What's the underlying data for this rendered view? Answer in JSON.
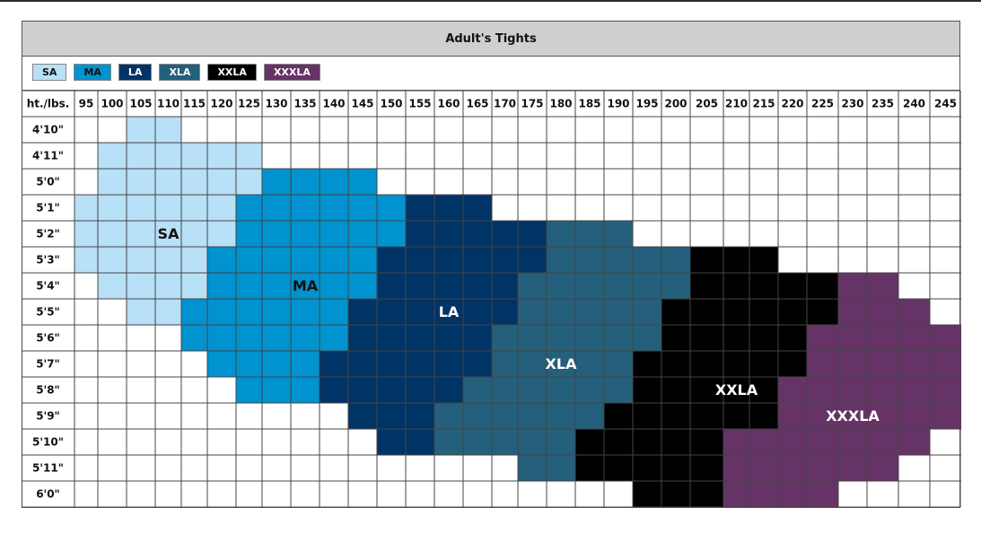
{
  "chart_data": {
    "type": "heatmap",
    "title": "Adult's Tights",
    "corner_label": "ht./lbs.",
    "weights": [
      "95",
      "100",
      "105",
      "110",
      "115",
      "120",
      "125",
      "130",
      "135",
      "140",
      "145",
      "150",
      "155",
      "160",
      "165",
      "170",
      "175",
      "180",
      "185",
      "190",
      "195",
      "200",
      "205",
      "210",
      "215",
      "220",
      "225",
      "230",
      "235",
      "240",
      "245"
    ],
    "heights": [
      "4'10\"",
      "4'11\"",
      "5'0\"",
      "5'1\"",
      "5'2\"",
      "5'3\"",
      "5'4\"",
      "5'5\"",
      "5'6\"",
      "5'7\"",
      "5'8\"",
      "5'9\"",
      "5'10\"",
      "5'11\"",
      "6'0\""
    ],
    "sizes": [
      {
        "code": "SA",
        "color": "#b8e0f7",
        "text_color": "#111111"
      },
      {
        "code": "MA",
        "color": "#0193d0",
        "text_color": "#111111"
      },
      {
        "code": "LA",
        "color": "#003366",
        "text_color": "#ffffff"
      },
      {
        "code": "XLA",
        "color": "#245f7b",
        "text_color": "#ffffff"
      },
      {
        "code": "XXLA",
        "color": "#000000",
        "text_color": "#ffffff"
      },
      {
        "code": "XXXLA",
        "color": "#663366",
        "text_color": "#ffffff"
      }
    ],
    "zones": [
      {
        "size": "SA",
        "rows": [
          {
            "height": "4'10\"",
            "from": "105",
            "to": "110"
          },
          {
            "height": "4'11\"",
            "from": "100",
            "to": "125"
          },
          {
            "height": "5'0\"",
            "from": "100",
            "to": "125"
          },
          {
            "height": "5'1\"",
            "from": "95",
            "to": "120"
          },
          {
            "height": "5'2\"",
            "from": "95",
            "to": "120"
          },
          {
            "height": "5'3\"",
            "from": "95",
            "to": "115"
          },
          {
            "height": "5'4\"",
            "from": "100",
            "to": "115"
          },
          {
            "height": "5'5\"",
            "from": "105",
            "to": "110"
          }
        ]
      },
      {
        "size": "MA",
        "rows": [
          {
            "height": "5'0\"",
            "from": "130",
            "to": "145"
          },
          {
            "height": "5'1\"",
            "from": "125",
            "to": "150"
          },
          {
            "height": "5'2\"",
            "from": "125",
            "to": "150"
          },
          {
            "height": "5'3\"",
            "from": "120",
            "to": "145"
          },
          {
            "height": "5'4\"",
            "from": "120",
            "to": "145"
          },
          {
            "height": "5'5\"",
            "from": "115",
            "to": "140"
          },
          {
            "height": "5'6\"",
            "from": "115",
            "to": "140"
          },
          {
            "height": "5'7\"",
            "from": "120",
            "to": "135"
          },
          {
            "height": "5'8\"",
            "from": "125",
            "to": "135"
          }
        ]
      },
      {
        "size": "LA",
        "rows": [
          {
            "height": "5'1\"",
            "from": "155",
            "to": "165"
          },
          {
            "height": "5'2\"",
            "from": "155",
            "to": "175"
          },
          {
            "height": "5'3\"",
            "from": "150",
            "to": "175"
          },
          {
            "height": "5'4\"",
            "from": "150",
            "to": "170"
          },
          {
            "height": "5'5\"",
            "from": "145",
            "to": "170"
          },
          {
            "height": "5'6\"",
            "from": "145",
            "to": "165"
          },
          {
            "height": "5'7\"",
            "from": "140",
            "to": "165"
          },
          {
            "height": "5'8\"",
            "from": "140",
            "to": "160"
          },
          {
            "height": "5'9\"",
            "from": "145",
            "to": "155"
          },
          {
            "height": "5'10\"",
            "from": "150",
            "to": "155"
          }
        ]
      },
      {
        "size": "XLA",
        "rows": [
          {
            "height": "5'2\"",
            "from": "180",
            "to": "190"
          },
          {
            "height": "5'3\"",
            "from": "180",
            "to": "200"
          },
          {
            "height": "5'4\"",
            "from": "175",
            "to": "200"
          },
          {
            "height": "5'5\"",
            "from": "175",
            "to": "195"
          },
          {
            "height": "5'6\"",
            "from": "170",
            "to": "195"
          },
          {
            "height": "5'7\"",
            "from": "170",
            "to": "190"
          },
          {
            "height": "5'8\"",
            "from": "165",
            "to": "190"
          },
          {
            "height": "5'9\"",
            "from": "160",
            "to": "185"
          },
          {
            "height": "5'10\"",
            "from": "160",
            "to": "180"
          },
          {
            "height": "5'11\"",
            "from": "175",
            "to": "180"
          }
        ]
      },
      {
        "size": "XXLA",
        "rows": [
          {
            "height": "5'3\"",
            "from": "205",
            "to": "215"
          },
          {
            "height": "5'4\"",
            "from": "205",
            "to": "225"
          },
          {
            "height": "5'5\"",
            "from": "200",
            "to": "225"
          },
          {
            "height": "5'6\"",
            "from": "200",
            "to": "220"
          },
          {
            "height": "5'7\"",
            "from": "195",
            "to": "220"
          },
          {
            "height": "5'8\"",
            "from": "195",
            "to": "215"
          },
          {
            "height": "5'9\"",
            "from": "190",
            "to": "215"
          },
          {
            "height": "5'10\"",
            "from": "185",
            "to": "205"
          },
          {
            "height": "5'11\"",
            "from": "185",
            "to": "205"
          },
          {
            "height": "6'0\"",
            "from": "195",
            "to": "205"
          }
        ]
      },
      {
        "size": "XXXLA",
        "rows": [
          {
            "height": "5'4\"",
            "from": "230",
            "to": "235"
          },
          {
            "height": "5'5\"",
            "from": "230",
            "to": "240"
          },
          {
            "height": "5'6\"",
            "from": "225",
            "to": "245"
          },
          {
            "height": "5'7\"",
            "from": "225",
            "to": "245"
          },
          {
            "height": "5'8\"",
            "from": "220",
            "to": "245"
          },
          {
            "height": "5'9\"",
            "from": "220",
            "to": "245"
          },
          {
            "height": "5'10\"",
            "from": "210",
            "to": "240"
          },
          {
            "height": "5'11\"",
            "from": "210",
            "to": "235"
          },
          {
            "height": "6'0\"",
            "from": "210",
            "to": "225"
          }
        ]
      }
    ],
    "zone_labels": [
      {
        "size": "SA",
        "weight": "110",
        "height": "5'2\""
      },
      {
        "size": "MA",
        "weight": "135",
        "height": "5'4\""
      },
      {
        "size": "LA",
        "weight": "160",
        "height": "5'5\""
      },
      {
        "size": "XLA",
        "weight": "180",
        "height": "5'7\""
      },
      {
        "size": "XXLA",
        "weight": "210",
        "height": "5'8\""
      },
      {
        "size": "XXXLA",
        "weight": "230",
        "height": "5'9\""
      }
    ],
    "grid": true
  }
}
